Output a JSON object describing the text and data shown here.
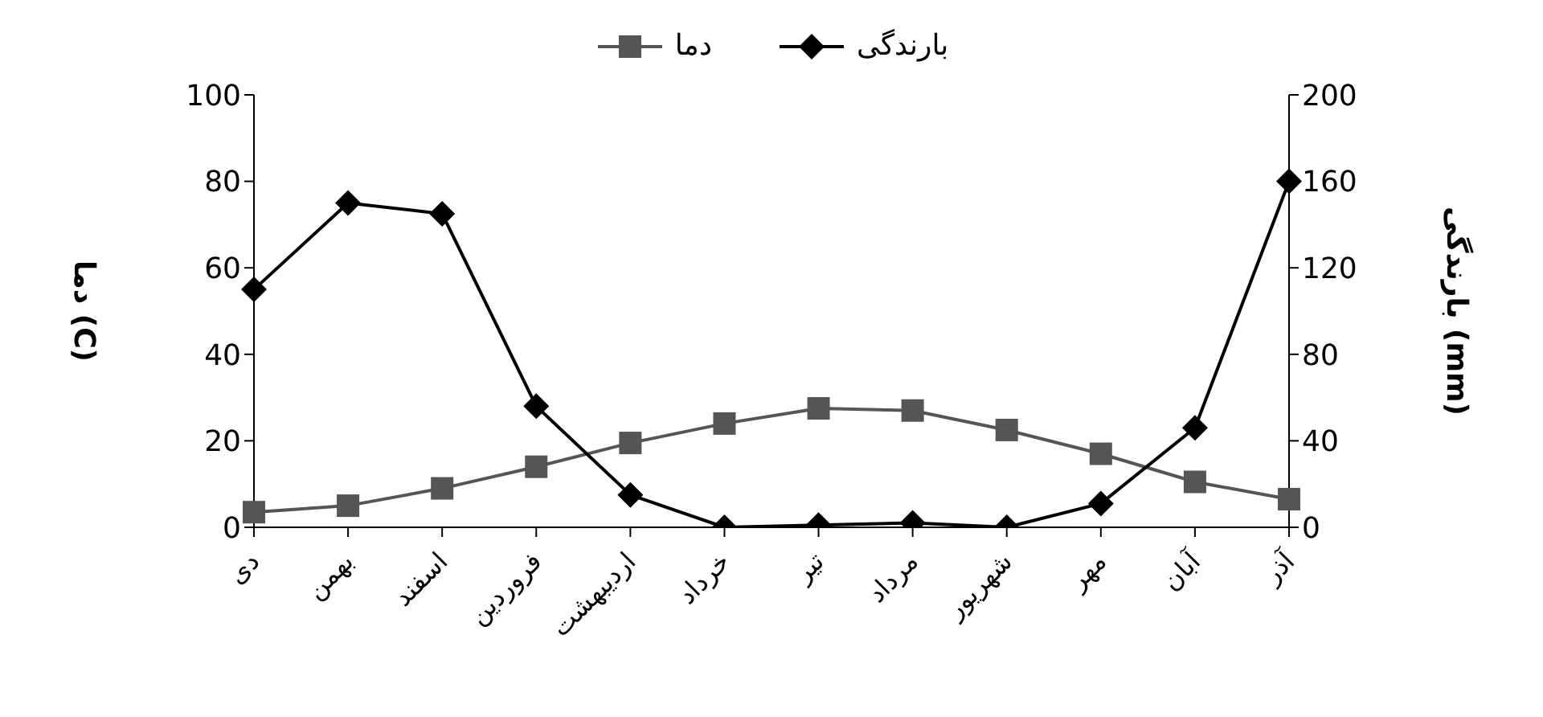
{
  "chart_data": {
    "type": "line",
    "categories": [
      "دی",
      "بهمن",
      "اسفند",
      "فروردین",
      "اردیبهشت",
      "خرداد",
      "تیر",
      "مرداد",
      "شهریور",
      "مهر",
      "آبان",
      "آذر"
    ],
    "ylabel": "دما (C)",
    "y2label": "بارندگی (mm)",
    "series": [
      {
        "name": "دما",
        "color": "#555555",
        "marker": "square",
        "values": [
          3.5,
          5,
          9,
          14,
          19.5,
          24,
          27.5,
          27,
          22.5,
          17,
          10.5,
          6.5
        ]
      },
      {
        "name": "بارندگی",
        "color": "#000000",
        "marker": "diamond",
        "axis": "y2",
        "values": [
          110,
          150,
          145,
          56,
          15,
          0,
          1,
          2,
          0,
          11,
          46,
          160
        ]
      }
    ],
    "ylim": [
      0,
      100
    ],
    "yticks": [
      0,
      20,
      40,
      60,
      80,
      100
    ],
    "y2lim": [
      0,
      200
    ],
    "y2ticks": [
      0,
      40,
      80,
      120,
      160,
      200
    ],
    "legend": "top",
    "grid": false,
    "line_style": "solid"
  }
}
